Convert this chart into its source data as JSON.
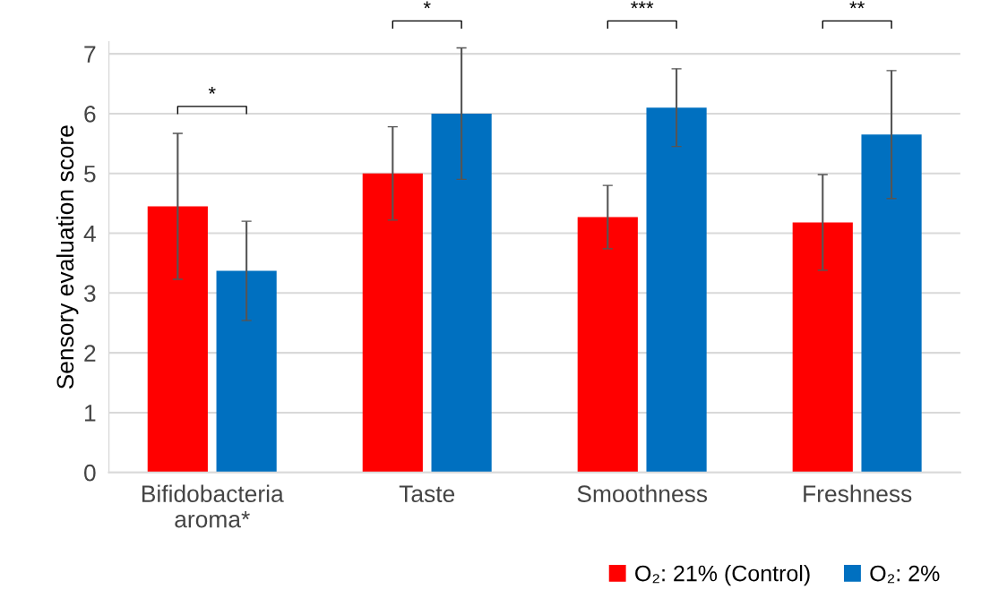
{
  "chart_data": {
    "type": "bar",
    "ylabel": "Sensory evaluation score",
    "categories": [
      "Bifidobacteria\naroma*",
      "Taste",
      "Smoothness",
      "Freshness"
    ],
    "series": [
      {
        "name": "O₂: 21% (Control)",
        "color": "#ff0000",
        "values": [
          4.45,
          5.0,
          4.27,
          4.18
        ],
        "errors": [
          1.22,
          0.78,
          0.53,
          0.8
        ]
      },
      {
        "name": "O₂: 2%",
        "color": "#0070c0",
        "values": [
          3.37,
          6.0,
          6.1,
          5.65
        ],
        "errors": [
          0.83,
          1.1,
          0.65,
          1.07
        ]
      }
    ],
    "ylim": [
      0,
      7.2
    ],
    "yticks": [
      0,
      1,
      2,
      3,
      4,
      5,
      6,
      7
    ],
    "grid": "y",
    "legend": "bottom right",
    "annotations": [
      "*",
      "*",
      "***",
      "**"
    ]
  }
}
